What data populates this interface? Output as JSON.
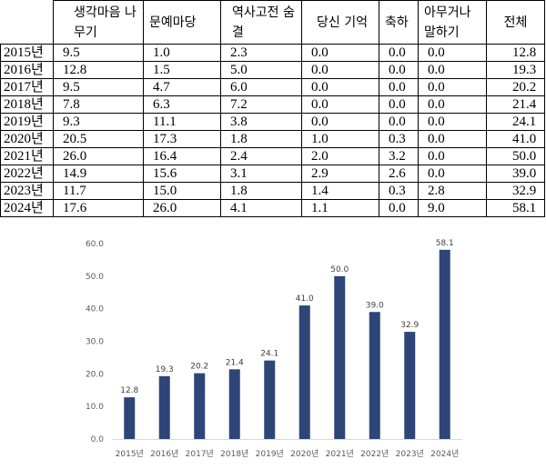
{
  "table": {
    "headers": [
      "",
      "생각마음 나무기",
      "문예마당",
      "역사고전 숨결",
      "당신 기억",
      "축하",
      "아무거나 말하기",
      "전체"
    ],
    "rows": [
      [
        "2015년",
        "9.5",
        "1.0",
        "2.3",
        "0.0",
        "0.0",
        "0.0",
        "12.8"
      ],
      [
        "2016년",
        "12.8",
        "1.5",
        "5.0",
        "0.0",
        "0.0",
        "0.0",
        "19.3"
      ],
      [
        "2017년",
        "9.5",
        "4.7",
        "6.0",
        "0.0",
        "0.0",
        "0.0",
        "20.2"
      ],
      [
        "2018년",
        "7.8",
        "6.3",
        "7.2",
        "0.0",
        "0.0",
        "0.0",
        "21.4"
      ],
      [
        "2019년",
        "9.3",
        "11.1",
        "3.8",
        "0.0",
        "0.0",
        "0.0",
        "24.1"
      ],
      [
        "2020년",
        "20.5",
        "17.3",
        "1.8",
        "1.0",
        "0.3",
        "0.0",
        "41.0"
      ],
      [
        "2021년",
        "26.0",
        "16.4",
        "2.4",
        "2.0",
        "3.2",
        "0.0",
        "50.0"
      ],
      [
        "2022년",
        "14.9",
        "15.6",
        "3.1",
        "2.9",
        "2.6",
        "0.0",
        "39.0"
      ],
      [
        "2023년",
        "11.7",
        "15.0",
        "1.8",
        "1.4",
        "0.3",
        "2.8",
        "32.9"
      ],
      [
        "2024년",
        "17.6",
        "26.0",
        "4.1",
        "1.1",
        "0.0",
        "9.0",
        "58.1"
      ]
    ]
  },
  "chart_data": {
    "type": "bar",
    "categories": [
      "2015년",
      "2016년",
      "2017년",
      "2018년",
      "2019년",
      "2020년",
      "2021년",
      "2022년",
      "2023년",
      "2024년"
    ],
    "values": [
      12.8,
      19.3,
      20.2,
      21.4,
      24.1,
      41.0,
      50.0,
      39.0,
      32.9,
      58.1
    ],
    "value_labels": [
      "12.8",
      "19.3",
      "20.2",
      "21.4",
      "24.1",
      "41.0",
      "50.0",
      "39.0",
      "32.9",
      "58.1"
    ],
    "y_ticks": [
      "0.0",
      "10.0",
      "20.0",
      "30.0",
      "40.0",
      "50.0",
      "60.0"
    ],
    "ylim": [
      0,
      60
    ],
    "title": "",
    "xlabel": "",
    "ylabel": "",
    "grid": false,
    "bar_color": "#2e4577"
  }
}
